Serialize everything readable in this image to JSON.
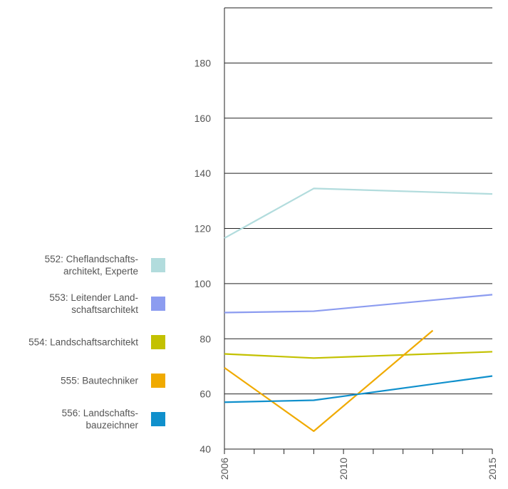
{
  "chart_data": {
    "type": "line",
    "x": [
      2006,
      2009,
      2015
    ],
    "x_ticks": [
      "2006",
      "2010",
      "2015"
    ],
    "ylim": [
      40,
      200
    ],
    "y_ticks": [
      40,
      60,
      80,
      100,
      120,
      140,
      160,
      180
    ],
    "grid": true,
    "legend_position": "left",
    "series": [
      {
        "name": "552: Cheflandschafts-\narchitekt, Experte",
        "color": "#b2dcdd",
        "points": [
          [
            2006,
            116.5
          ],
          [
            2009,
            134.5
          ],
          [
            2015,
            132.5
          ]
        ]
      },
      {
        "name": "553: Leitender Land-\nschaftsarchitekt",
        "color": "#8c9cf0",
        "points": [
          [
            2006,
            89.5
          ],
          [
            2009,
            90
          ],
          [
            2015,
            96
          ]
        ]
      },
      {
        "name": "554: Landschaftsarchitekt",
        "color": "#c3c100",
        "points": [
          [
            2006,
            74.5
          ],
          [
            2009,
            73
          ],
          [
            2015,
            75.3
          ]
        ]
      },
      {
        "name": "555: Bautechniker",
        "color": "#f0aa00",
        "points": [
          [
            2006,
            69.5
          ],
          [
            2009,
            46.5
          ],
          [
            2013,
            83
          ]
        ]
      },
      {
        "name": "556: Landschafts-\nbauzeichner",
        "color": "#1090cc",
        "points": [
          [
            2006,
            57
          ],
          [
            2009,
            57.7
          ],
          [
            2015,
            66.5
          ]
        ]
      }
    ]
  }
}
